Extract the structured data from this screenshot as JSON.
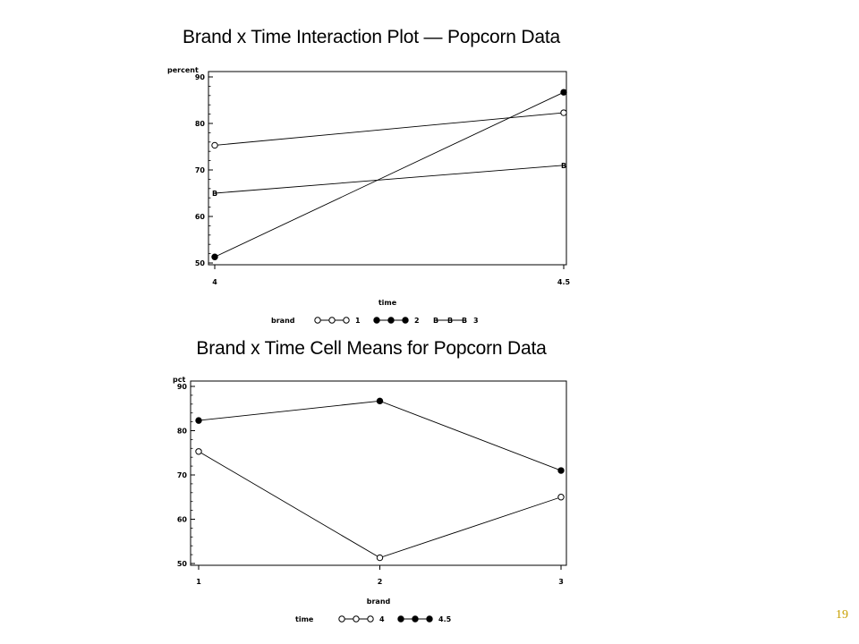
{
  "slide": {
    "page_number": "19",
    "accent_color": "#c8a000"
  },
  "chart_data": [
    {
      "type": "line",
      "title": "Brand x Time Interaction Plot — Popcorn Data",
      "xlabel": "time",
      "ylabel": "percent",
      "x": [
        4,
        4.5
      ],
      "x_tick_labels": [
        "4",
        "4.5"
      ],
      "xlim": [
        4,
        4.5
      ],
      "y_ticks": [
        50,
        60,
        70,
        80,
        90
      ],
      "ylim": [
        50,
        90
      ],
      "legend_title": "brand",
      "legend_position": "bottom",
      "grid": false,
      "series": [
        {
          "name": "1",
          "marker": "open-circle",
          "values": [
            75.3,
            82.3
          ]
        },
        {
          "name": "2",
          "marker": "filled-circle",
          "values": [
            51.3,
            86.7
          ]
        },
        {
          "name": "3",
          "marker": "letter-B",
          "values": [
            65.0,
            71.0
          ]
        }
      ]
    },
    {
      "type": "line",
      "title": "Brand x Time Cell Means for Popcorn Data",
      "xlabel": "brand",
      "ylabel": "pct",
      "x": [
        1,
        2,
        3
      ],
      "x_tick_labels": [
        "1",
        "2",
        "3"
      ],
      "xlim": [
        1,
        3
      ],
      "y_ticks": [
        50,
        60,
        70,
        80,
        90
      ],
      "ylim": [
        50,
        90
      ],
      "legend_title": "time",
      "legend_position": "bottom",
      "grid": false,
      "series": [
        {
          "name": "4",
          "marker": "open-circle",
          "values": [
            75.3,
            51.3,
            65.0
          ]
        },
        {
          "name": "4.5",
          "marker": "filled-circle",
          "values": [
            82.3,
            86.7,
            71.0
          ]
        }
      ]
    }
  ]
}
